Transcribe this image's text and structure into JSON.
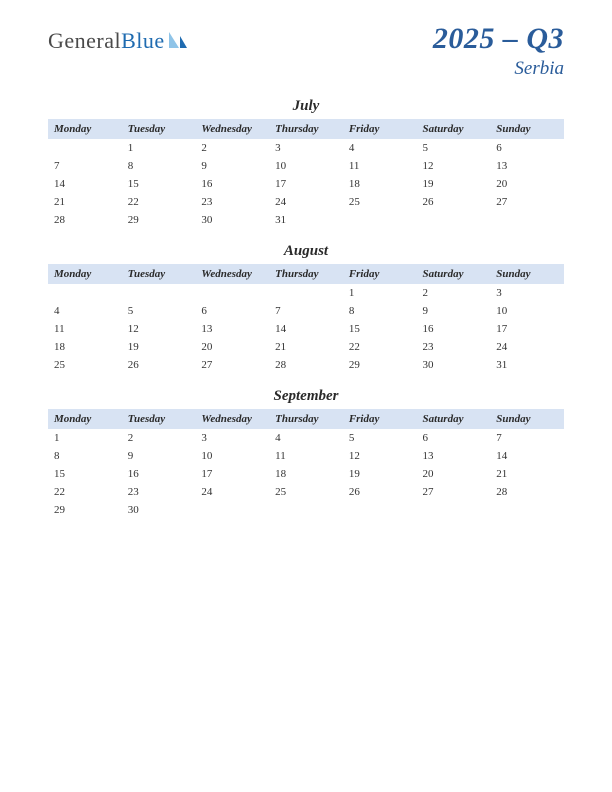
{
  "logo": {
    "part1": "General",
    "part2": "Blue"
  },
  "title": {
    "main": "2025 – Q3",
    "sub": "Serbia"
  },
  "colors": {
    "title": "#2a5c9a",
    "header_bg": "#d8e3f3",
    "text": "#333333",
    "logo_gray": "#4a4a4a",
    "logo_blue": "#1f6bb0",
    "sail_light": "#8fc4e8",
    "sail_dark": "#1f6bb0",
    "background": "#ffffff"
  },
  "day_headers": [
    "Monday",
    "Tuesday",
    "Wednesday",
    "Thursday",
    "Friday",
    "Saturday",
    "Sunday"
  ],
  "months": [
    {
      "name": "July",
      "weeks": [
        [
          "",
          "1",
          "2",
          "3",
          "4",
          "5",
          "6"
        ],
        [
          "7",
          "8",
          "9",
          "10",
          "11",
          "12",
          "13"
        ],
        [
          "14",
          "15",
          "16",
          "17",
          "18",
          "19",
          "20"
        ],
        [
          "21",
          "22",
          "23",
          "24",
          "25",
          "26",
          "27"
        ],
        [
          "28",
          "29",
          "30",
          "31",
          "",
          "",
          ""
        ]
      ]
    },
    {
      "name": "August",
      "weeks": [
        [
          "",
          "",
          "",
          "",
          "1",
          "2",
          "3"
        ],
        [
          "4",
          "5",
          "6",
          "7",
          "8",
          "9",
          "10"
        ],
        [
          "11",
          "12",
          "13",
          "14",
          "15",
          "16",
          "17"
        ],
        [
          "18",
          "19",
          "20",
          "21",
          "22",
          "23",
          "24"
        ],
        [
          "25",
          "26",
          "27",
          "28",
          "29",
          "30",
          "31"
        ]
      ]
    },
    {
      "name": "September",
      "weeks": [
        [
          "1",
          "2",
          "3",
          "4",
          "5",
          "6",
          "7"
        ],
        [
          "8",
          "9",
          "10",
          "11",
          "12",
          "13",
          "14"
        ],
        [
          "15",
          "16",
          "17",
          "18",
          "19",
          "20",
          "21"
        ],
        [
          "22",
          "23",
          "24",
          "25",
          "26",
          "27",
          "28"
        ],
        [
          "29",
          "30",
          "",
          "",
          "",
          "",
          ""
        ]
      ]
    }
  ]
}
